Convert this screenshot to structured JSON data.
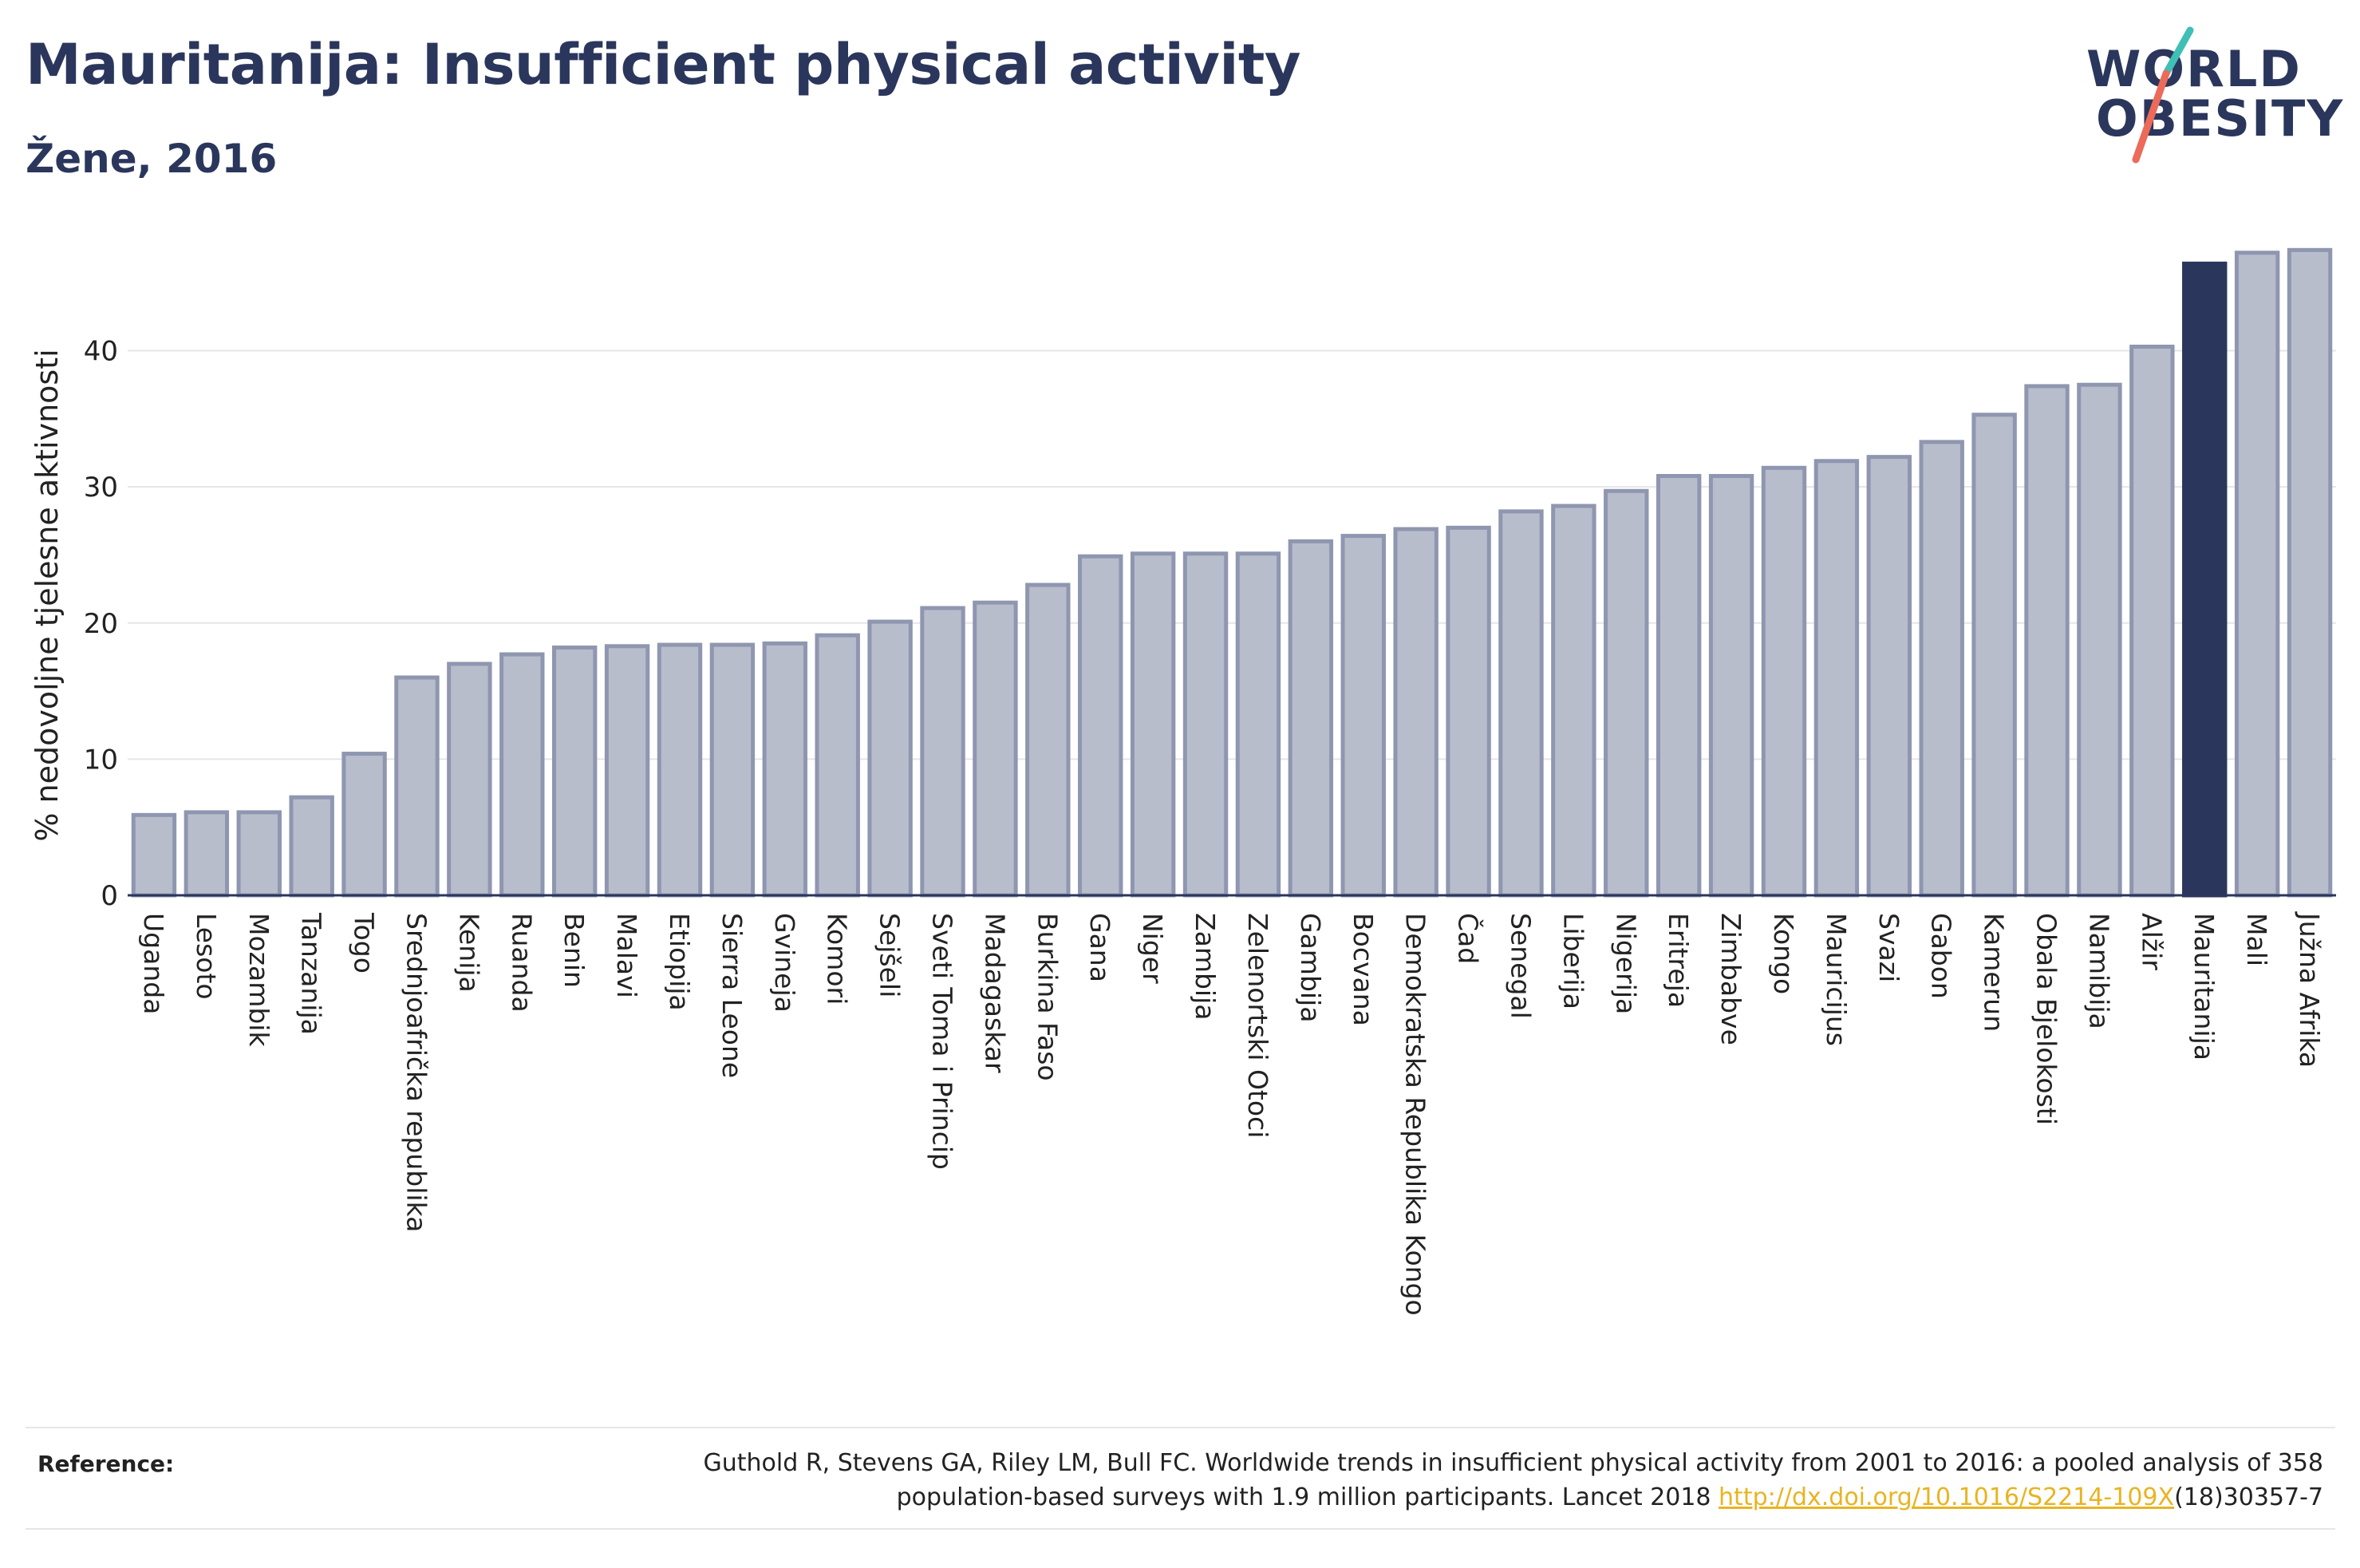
{
  "header": {
    "title": "Mauritanija: Insufficient physical activity",
    "subtitle": "Žene, 2016"
  },
  "logo": {
    "line1": "WORLD",
    "line2": "OBESITY"
  },
  "colors": {
    "bar": "#b8bdcc",
    "bar_border": "#8f96b0",
    "highlight": "#2b365c",
    "grid": "#e6e6e6",
    "axis": "#2b365c"
  },
  "chart_data": {
    "type": "bar",
    "ylabel": "% nedovoljne tjelesne aktivnosti",
    "xlabel": "",
    "ylim": [
      0,
      49
    ],
    "yticks": [
      0,
      10,
      20,
      30,
      40
    ],
    "grid": true,
    "highlight": "Mauritanija",
    "categories": [
      "Uganda",
      "Lesoto",
      "Mozambik",
      "Tanzanija",
      "Togo",
      "Srednjoafrička republika",
      "Kenija",
      "Ruanda",
      "Benin",
      "Malavi",
      "Etiopija",
      "Sierra Leone",
      "Gvineja",
      "Komori",
      "Sejšeli",
      "Sveti Toma i Princip",
      "Madagaskar",
      "Burkina Faso",
      "Gana",
      "Niger",
      "Zambija",
      "Zelenortski Otoci",
      "Gambija",
      "Bocvana",
      "Demokratska Republika Kongo",
      "Čad",
      "Senegal",
      "Liberija",
      "Nigerija",
      "Eritreja",
      "Zimbabve",
      "Kongo",
      "Mauricijus",
      "Svazi",
      "Gabon",
      "Kamerun",
      "Obala Bjelokosti",
      "Namibija",
      "Alžir",
      "Mauritanija",
      "Mali",
      "Južna Afrika"
    ],
    "values": [
      5.9,
      6.1,
      6.1,
      7.2,
      10.4,
      16.0,
      17.0,
      17.7,
      18.2,
      18.3,
      18.4,
      18.4,
      18.5,
      19.1,
      20.1,
      21.1,
      21.5,
      22.8,
      24.9,
      25.1,
      25.1,
      25.1,
      26.0,
      26.4,
      26.9,
      27.0,
      28.2,
      28.6,
      29.7,
      30.8,
      30.8,
      31.4,
      31.9,
      32.2,
      33.3,
      35.3,
      37.4,
      37.5,
      40.3,
      46.4,
      47.2,
      47.4
    ]
  },
  "reference": {
    "label": "Reference:",
    "text_line1": "Guthold R, Stevens GA, Riley LM, Bull FC. Worldwide trends in insufficient physical activity from 2001 to 2016: a pooled analysis of 358",
    "text_line2_pre": "population-based surveys with 1.9 million participants. Lancet 2018 ",
    "link": "http://dx.doi.org/10.1016/S2214-109X",
    "text_line2_post": "(18)30357-7"
  }
}
